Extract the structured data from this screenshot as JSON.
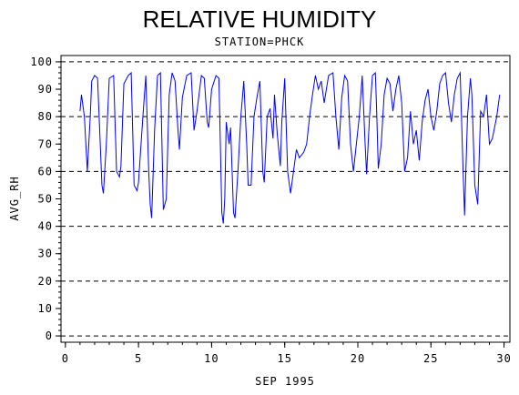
{
  "chart_data": {
    "type": "line",
    "title": "RELATIVE HUMIDITY",
    "subtitle": "STATION=PHCK",
    "x_label": "SEP 1995",
    "y_label": "AVG_RH",
    "xlim": [
      -0.3,
      30.4
    ],
    "xticks": [
      0,
      5,
      10,
      15,
      20,
      25,
      30
    ],
    "ylim": [
      -2.3,
      102.3
    ],
    "yticks": [
      0,
      10,
      20,
      30,
      40,
      50,
      60,
      70,
      80,
      90,
      100
    ],
    "grid": true,
    "x": [
      1.0,
      1.1,
      1.3,
      1.5,
      1.7,
      1.8,
      2.0,
      2.2,
      2.5,
      2.6,
      2.8,
      3.0,
      3.3,
      3.5,
      3.7,
      3.8,
      4.0,
      4.3,
      4.5,
      4.7,
      4.9,
      5.0,
      5.3,
      5.5,
      5.7,
      5.8,
      5.9,
      6.1,
      6.3,
      6.5,
      6.7,
      6.9,
      7.1,
      7.3,
      7.5,
      7.7,
      7.8,
      8.0,
      8.3,
      8.6,
      8.8,
      9.0,
      9.3,
      9.5,
      9.7,
      9.8,
      10.0,
      10.3,
      10.5,
      10.7,
      10.8,
      10.9,
      11.0,
      11.2,
      11.3,
      11.5,
      11.6,
      11.8,
      12.0,
      12.2,
      12.4,
      12.5,
      12.7,
      12.9,
      13.1,
      13.3,
      13.5,
      13.6,
      13.8,
      14.0,
      14.2,
      14.3,
      14.5,
      14.7,
      14.8,
      15.0,
      15.2,
      15.4,
      15.6,
      15.8,
      16.0,
      16.3,
      16.5,
      16.7,
      16.9,
      17.1,
      17.3,
      17.5,
      17.7,
      18.0,
      18.3,
      18.5,
      18.7,
      18.9,
      19.1,
      19.3,
      19.5,
      19.7,
      19.9,
      20.1,
      20.3,
      20.5,
      20.6,
      20.8,
      21.0,
      21.2,
      21.3,
      21.4,
      21.6,
      21.8,
      22.0,
      22.2,
      22.4,
      22.6,
      22.8,
      23.0,
      23.2,
      23.4,
      23.6,
      23.8,
      24.0,
      24.2,
      24.4,
      24.6,
      24.8,
      25.0,
      25.2,
      25.4,
      25.6,
      25.8,
      26.0,
      26.2,
      26.4,
      26.6,
      26.8,
      27.0,
      27.2,
      27.3,
      27.5,
      27.7,
      27.8,
      28.0,
      28.2,
      28.4,
      28.6,
      28.8,
      29.0,
      29.2,
      29.5,
      29.7
    ],
    "series": [
      {
        "name": "AVG_RH",
        "color": "#0000ff",
        "values": [
          82,
          88,
          80,
          60,
          80,
          93,
          95,
          94,
          55,
          52,
          70,
          94,
          95,
          60,
          58,
          62,
          92,
          95,
          96,
          55,
          53,
          56,
          80,
          95,
          60,
          48,
          43,
          75,
          95,
          96,
          46,
          50,
          88,
          96,
          93,
          75,
          68,
          87,
          95,
          96,
          75,
          82,
          95,
          94,
          78,
          76,
          90,
          95,
          94,
          45,
          41,
          50,
          78,
          70,
          76,
          45,
          43,
          60,
          80,
          93,
          70,
          55,
          55,
          80,
          87,
          93,
          60,
          56,
          80,
          83,
          72,
          88,
          73,
          62,
          78,
          94,
          60,
          52,
          60,
          68,
          65,
          67,
          70,
          80,
          88,
          95,
          90,
          93,
          85,
          95,
          96,
          80,
          68,
          87,
          95,
          93,
          70,
          60,
          70,
          80,
          95,
          70,
          59,
          80,
          95,
          96,
          80,
          61,
          70,
          88,
          94,
          92,
          82,
          90,
          95,
          85,
          60,
          65,
          82,
          70,
          75,
          64,
          78,
          86,
          90,
          80,
          75,
          82,
          92,
          95,
          96,
          85,
          78,
          88,
          94,
          96,
          60,
          44,
          80,
          94,
          88,
          55,
          48,
          82,
          80,
          88,
          70,
          72,
          80,
          88
        ]
      }
    ]
  }
}
